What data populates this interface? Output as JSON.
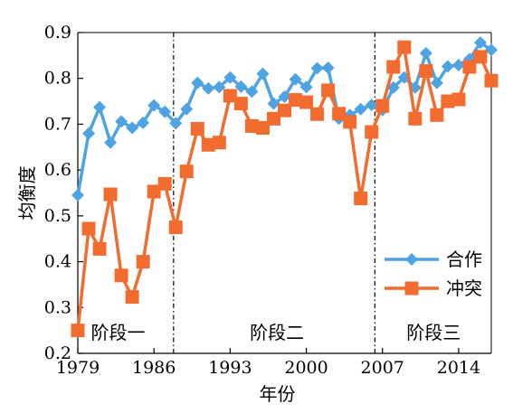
{
  "chart_data": {
    "type": "line",
    "title": "",
    "xlabel": "年份",
    "ylabel": "均衡度",
    "xlim": [
      1979,
      2017
    ],
    "ylim": [
      0.2,
      0.9
    ],
    "x_ticks": [
      1979,
      1986,
      1993,
      2000,
      2007,
      2014
    ],
    "y_ticks": [
      0.2,
      0.3,
      0.4,
      0.5,
      0.6,
      0.7,
      0.8,
      0.9
    ],
    "y_tick_labels": [
      "0.2",
      "0.3",
      "0.4",
      "0.5",
      "0.6",
      "0.7",
      "0.8",
      "0.9"
    ],
    "grid": false,
    "legend_position": "bottom-right",
    "x": [
      1979,
      1980,
      1981,
      1982,
      1983,
      1984,
      1985,
      1986,
      1987,
      1988,
      1989,
      1990,
      1991,
      1992,
      1993,
      1994,
      1995,
      1996,
      1997,
      1998,
      1999,
      2000,
      2001,
      2002,
      2003,
      2004,
      2005,
      2006,
      2007,
      2008,
      2009,
      2010,
      2011,
      2012,
      2013,
      2014,
      2015,
      2016,
      2017
    ],
    "series": [
      {
        "name": "合作",
        "color": "#4ea3e3",
        "marker": "diamond",
        "values": [
          0.545,
          0.68,
          0.737,
          0.66,
          0.706,
          0.692,
          0.703,
          0.741,
          0.727,
          0.702,
          0.733,
          0.79,
          0.778,
          0.781,
          0.802,
          0.782,
          0.771,
          0.81,
          0.745,
          0.76,
          0.798,
          0.781,
          0.822,
          0.823,
          0.712,
          0.72,
          0.733,
          0.742,
          0.731,
          0.78,
          0.802,
          0.78,
          0.855,
          0.79,
          0.826,
          0.829,
          0.842,
          0.878,
          0.862
        ]
      },
      {
        "name": "冲突",
        "color": "#f26c2f",
        "marker": "square",
        "values": [
          0.25,
          0.472,
          0.428,
          0.547,
          0.37,
          0.323,
          0.4,
          0.553,
          0.57,
          0.475,
          0.597,
          0.69,
          0.655,
          0.66,
          0.762,
          0.745,
          0.696,
          0.692,
          0.712,
          0.73,
          0.753,
          0.748,
          0.722,
          0.774,
          0.723,
          0.705,
          0.538,
          0.683,
          0.74,
          0.825,
          0.868,
          0.712,
          0.816,
          0.72,
          0.75,
          0.754,
          0.825,
          0.847,
          0.795
        ]
      }
    ],
    "phase_dividers": [
      1987.8,
      2006.3
    ],
    "annotations": [
      {
        "text": "阶段一",
        "x": 1982.7,
        "y": 0.245
      },
      {
        "text": "阶段二",
        "x": 1997.3,
        "y": 0.245
      },
      {
        "text": "阶段三",
        "x": 2011.7,
        "y": 0.245
      }
    ]
  }
}
